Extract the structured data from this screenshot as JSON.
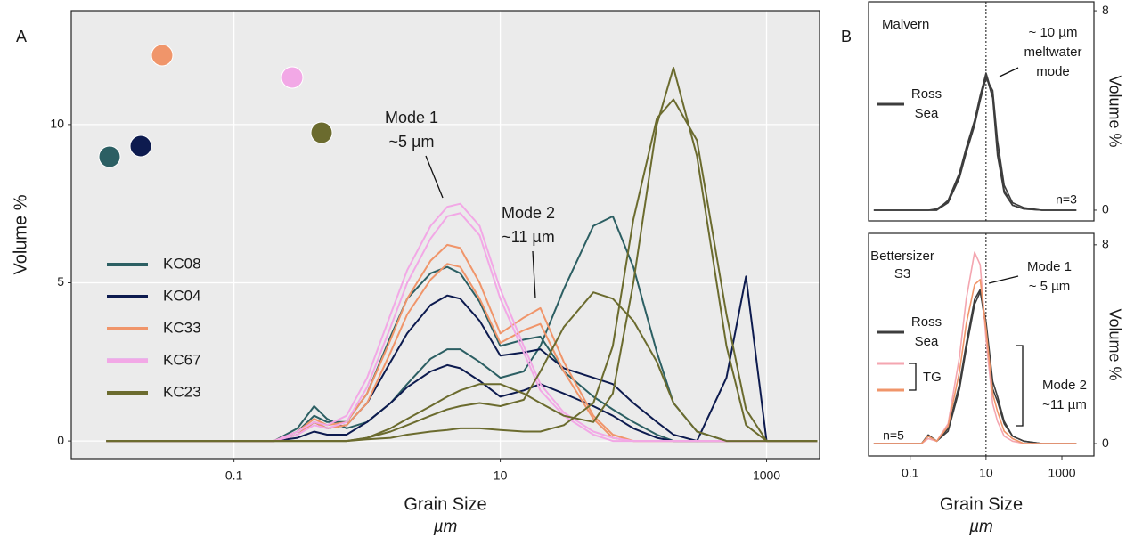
{
  "chart_data": [
    {
      "type": "line",
      "panel": "A",
      "x_scale": "log",
      "x": [
        0.011,
        0.2,
        0.3,
        0.4,
        0.5,
        0.7,
        1,
        1.5,
        2,
        3,
        4,
        5,
        7,
        10,
        15,
        20,
        30,
        50,
        70,
        100,
        150,
        200,
        300,
        500,
        700,
        1000,
        2400
      ],
      "xlim": [
        0.006,
        2500
      ],
      "xticks": [
        0.1,
        10,
        1000
      ],
      "ylim": [
        -0.56,
        13.6
      ],
      "yticks": [
        0,
        5,
        10
      ],
      "grid": true,
      "xlabel": "Grain Size",
      "xunit": "µm",
      "ylabel": "Volume %",
      "legend": "left",
      "series": [
        {
          "name": "KC08",
          "color": "#2c5f63",
          "curves": [
            [
              0,
              0,
              0.4,
              1.1,
              0.7,
              0.4,
              0.6,
              1.2,
              1.8,
              2.6,
              2.9,
              2.9,
              2.5,
              2.0,
              2.2,
              3.0,
              4.8,
              6.8,
              7.1,
              5.5,
              2.8,
              1.2,
              0.3,
              0,
              0,
              0,
              0
            ],
            [
              0,
              0,
              0.3,
              0.8,
              0.6,
              0.6,
              1.5,
              3.3,
              4.5,
              5.3,
              5.5,
              5.3,
              4.4,
              3.0,
              3.2,
              3.3,
              2.2,
              1.4,
              1.0,
              0.6,
              0.2,
              0,
              0,
              0,
              0,
              0,
              0
            ]
          ]
        },
        {
          "name": "KC04",
          "color": "#0d1b4f",
          "curves": [
            [
              0,
              0,
              0.2,
              0.6,
              0.4,
              0.5,
              1.2,
              2.5,
              3.4,
              4.3,
              4.6,
              4.5,
              3.8,
              2.7,
              2.8,
              2.9,
              2.3,
              2.0,
              1.8,
              1.2,
              0.6,
              0.2,
              0,
              0,
              0,
              0,
              0
            ],
            [
              0,
              0,
              0.1,
              0.3,
              0.2,
              0.2,
              0.6,
              1.2,
              1.7,
              2.2,
              2.4,
              2.3,
              1.9,
              1.4,
              1.6,
              1.8,
              1.5,
              1.1,
              0.8,
              0.4,
              0.1,
              0,
              0,
              2.0,
              5.2,
              0,
              0
            ]
          ]
        },
        {
          "name": "KC33",
          "color": "#f0956a",
          "curves": [
            [
              0,
              0,
              0.3,
              0.7,
              0.5,
              0.6,
              1.5,
              3.2,
              4.5,
              5.7,
              6.2,
              6.1,
              5.0,
              3.4,
              3.9,
              4.2,
              2.5,
              0.8,
              0.2,
              0,
              0,
              0,
              0,
              0,
              0,
              0,
              0
            ],
            [
              0,
              0,
              0.2,
              0.6,
              0.4,
              0.5,
              1.2,
              2.8,
              4.0,
              5.1,
              5.6,
              5.5,
              4.5,
              3.1,
              3.5,
              3.7,
              2.2,
              0.7,
              0.1,
              0,
              0,
              0,
              0,
              0,
              0,
              0,
              0
            ]
          ]
        },
        {
          "name": "KC67",
          "color": "#f2a8e6",
          "curves": [
            [
              0,
              0,
              0.3,
              0.6,
              0.5,
              0.8,
              2.0,
              4.0,
              5.4,
              6.8,
              7.4,
              7.5,
              6.8,
              4.8,
              3.0,
              1.8,
              0.9,
              0.3,
              0.1,
              0,
              0,
              0,
              0,
              0,
              0,
              0,
              0
            ],
            [
              0,
              0,
              0.2,
              0.5,
              0.4,
              0.6,
              1.7,
              3.6,
              5.0,
              6.4,
              7.1,
              7.2,
              6.5,
              4.5,
              2.8,
              1.6,
              0.8,
              0.2,
              0,
              0,
              0,
              0,
              0,
              0,
              0,
              0,
              0
            ]
          ]
        },
        {
          "name": "KC23",
          "color": "#6b6b2e",
          "curves": [
            [
              0,
              0,
              0,
              0,
              0,
              0,
              0.1,
              0.4,
              0.7,
              1.1,
              1.4,
              1.6,
              1.8,
              1.8,
              1.5,
              1.2,
              0.8,
              0.6,
              1.5,
              5.0,
              10.0,
              11.8,
              9.0,
              3.0,
              0.5,
              0,
              0
            ],
            [
              0,
              0,
              0,
              0,
              0,
              0,
              0.05,
              0.1,
              0.2,
              0.3,
              0.35,
              0.4,
              0.4,
              0.35,
              0.3,
              0.3,
              0.5,
              1.2,
              3.0,
              7.0,
              10.2,
              10.8,
              9.5,
              4.0,
              1.0,
              0,
              0
            ],
            [
              0,
              0,
              0,
              0,
              0,
              0,
              0.1,
              0.3,
              0.5,
              0.8,
              1.0,
              1.1,
              1.2,
              1.1,
              1.3,
              2.2,
              3.6,
              4.7,
              4.5,
              3.8,
              2.5,
              1.2,
              0.3,
              0,
              0,
              0,
              0
            ]
          ]
        }
      ],
      "annotations": [
        {
          "text": [
            "Mode 1",
            "~5 µm"
          ]
        },
        {
          "text": [
            "Mode 2",
            "~11 µm"
          ]
        }
      ]
    },
    {
      "type": "line",
      "panel": "B",
      "x_scale": "log",
      "x": [
        0.011,
        0.2,
        0.3,
        0.5,
        1,
        2,
        3,
        5,
        7,
        10,
        15,
        20,
        30,
        50,
        100,
        300,
        2400
      ],
      "xlim": [
        0.008,
        7000
      ],
      "ylim": [
        -0.43,
        8.36
      ],
      "yticks": [
        0,
        8
      ],
      "yaxis": "right",
      "ylabel": "Volume %",
      "title": [
        "Malvern"
      ],
      "vline": 10,
      "series": [
        {
          "name": [
            "Ross",
            "Sea"
          ],
          "color": "#3d3d3d",
          "curves": [
            [
              0,
              0,
              0,
              0,
              0.4,
              1.5,
              2.5,
              3.6,
              4.6,
              5.5,
              4.6,
              2.4,
              0.8,
              0.2,
              0.05,
              0,
              0
            ],
            [
              0,
              0,
              0,
              0,
              0.3,
              1.3,
              2.3,
              3.4,
              4.4,
              5.3,
              4.8,
              2.8,
              1.0,
              0.3,
              0.1,
              0,
              0
            ],
            [
              0,
              0,
              0,
              0.05,
              0.35,
              1.4,
              2.4,
              3.5,
              4.5,
              5.4,
              4.5,
              2.2,
              0.7,
              0.2,
              0.05,
              0,
              0
            ]
          ]
        }
      ],
      "annotations": [
        {
          "text": [
            "~ 10 µm",
            "meltwater",
            "mode"
          ]
        },
        {
          "text": [
            "n=3"
          ]
        }
      ]
    },
    {
      "type": "line",
      "x_scale": "log",
      "x": [
        0.011,
        0.2,
        0.3,
        0.5,
        1,
        2,
        3,
        5,
        7,
        10,
        15,
        20,
        30,
        50,
        100,
        300,
        2400
      ],
      "xlim": [
        0.008,
        7000
      ],
      "xticks": [
        0.1,
        10,
        1000
      ],
      "ylim": [
        -0.5,
        8.46
      ],
      "yticks": [
        0,
        8
      ],
      "yaxis": "right",
      "ylabel": "Volume %",
      "xlabel": "Grain Size",
      "xunit": "µm",
      "title": [
        "Bettersizer",
        "S3"
      ],
      "vline": 10,
      "series": [
        {
          "name": [
            "Ross",
            "Sea"
          ],
          "color": "#3d3d3d",
          "curves": [
            [
              0,
              0,
              0.35,
              0.1,
              0.6,
              2.4,
              4.0,
              5.8,
              6.2,
              4.6,
              2.2,
              1.7,
              0.8,
              0.3,
              0.1,
              0,
              0
            ],
            [
              0,
              0,
              0.3,
              0.1,
              0.5,
              2.2,
              3.8,
              5.6,
              6.1,
              4.9,
              2.5,
              1.9,
              0.9,
              0.3,
              0.1,
              0,
              0
            ]
          ]
        },
        {
          "name": [
            "TG"
          ],
          "colors": [
            "#f4a6b0",
            "#f0956a"
          ],
          "curves": [
            [
              0,
              0,
              0.2,
              0.1,
              0.8,
              3.5,
              5.8,
              7.7,
              7.2,
              4.2,
              1.6,
              0.9,
              0.3,
              0.1,
              0,
              0,
              0
            ],
            [
              0,
              0,
              0.3,
              0.1,
              0.7,
              2.9,
              4.8,
              6.4,
              6.6,
              4.6,
              2.0,
              1.3,
              0.5,
              0.2,
              0,
              0,
              0
            ]
          ]
        }
      ],
      "annotations": [
        {
          "text": [
            "Mode 1",
            "~ 5 µm"
          ]
        },
        {
          "text": [
            "Mode 2",
            "~11 µm"
          ]
        },
        {
          "text": [
            "n=5"
          ]
        }
      ]
    }
  ]
}
